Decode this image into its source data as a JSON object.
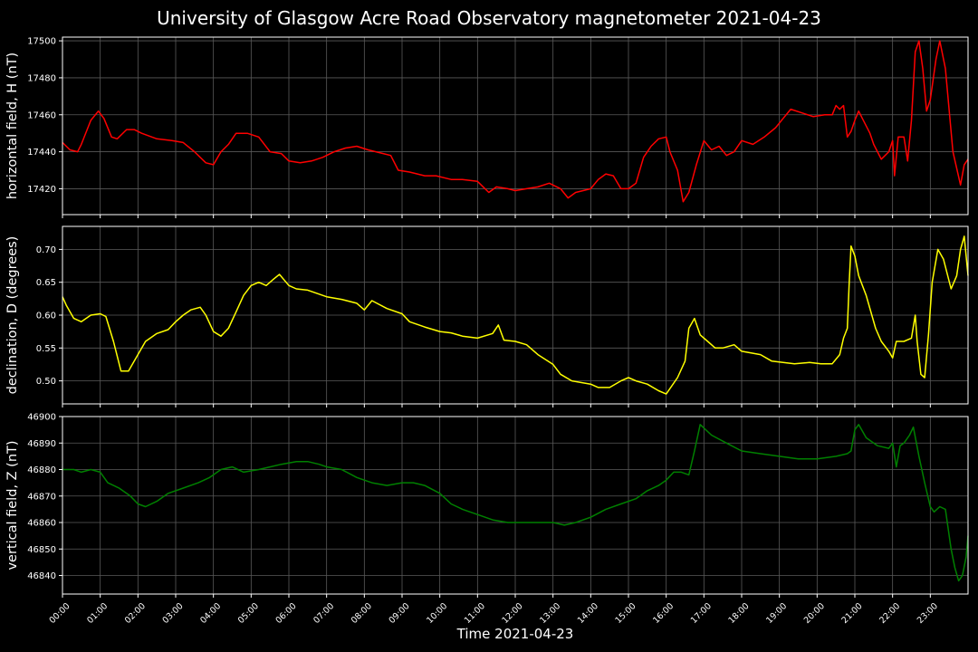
{
  "figure": {
    "title": "University of Glasgow Acre Road Observatory magnetometer 2021-04-23",
    "xlabel": "Time 2021-04-23",
    "background": "#000000",
    "grid_color": "#5a5a5a"
  },
  "chart_data": [
    {
      "type": "line",
      "ylabel": "horizontal field, H (nT)",
      "color": "#ff0000",
      "ylim": [
        17406,
        17502
      ],
      "yticks": [
        17420,
        17440,
        17460,
        17480,
        17500
      ],
      "xlim": [
        0,
        24
      ],
      "grid": true,
      "series": [
        {
          "x": [
            0.0,
            0.2,
            0.4,
            0.5,
            0.75,
            0.95,
            1.1,
            1.3,
            1.45,
            1.7,
            1.9,
            2.1,
            2.5,
            2.9,
            3.2,
            3.5,
            3.8,
            4.0,
            4.2,
            4.4,
            4.6,
            4.9,
            5.2,
            5.5,
            5.8,
            6.0,
            6.3,
            6.6,
            6.9,
            7.2,
            7.5,
            7.8,
            8.1,
            8.5,
            8.7,
            8.9,
            9.2,
            9.6,
            9.9,
            10.3,
            10.6,
            11.0,
            11.3,
            11.5,
            11.8,
            12.0,
            12.3,
            12.6,
            12.9,
            13.2,
            13.4,
            13.6,
            13.8,
            14.0,
            14.2,
            14.4,
            14.6,
            14.8,
            15.0,
            15.2,
            15.4,
            15.6,
            15.8,
            16.0,
            16.1,
            16.3,
            16.45,
            16.6,
            16.8,
            17.0,
            17.2,
            17.4,
            17.6,
            17.8,
            18.0,
            18.3,
            18.6,
            18.9,
            19.1,
            19.3,
            19.6,
            19.9,
            20.2,
            20.4,
            20.5,
            20.6,
            20.7,
            20.8,
            20.9,
            21.0,
            21.1,
            21.2,
            21.4,
            21.5,
            21.7,
            21.9,
            22.0,
            22.05,
            22.15,
            22.3,
            22.4,
            22.5,
            22.6,
            22.7,
            22.8,
            22.9,
            23.0,
            23.15,
            23.25,
            23.4,
            23.6,
            23.8,
            23.9,
            24.0
          ],
          "values": [
            17445,
            17441,
            17440,
            17444,
            17457,
            17462,
            17458,
            17448,
            17447,
            17452,
            17452,
            17450,
            17447,
            17446,
            17445,
            17440,
            17434,
            17433,
            17440,
            17444,
            17450,
            17450,
            17448,
            17440,
            17439,
            17435,
            17434,
            17435,
            17437,
            17440,
            17442,
            17443,
            17441,
            17439,
            17438,
            17430,
            17429,
            17427,
            17427,
            17425,
            17425,
            17424,
            17418,
            17421,
            17420,
            17419,
            17420,
            17421,
            17423,
            17420,
            17415,
            17418,
            17419,
            17420,
            17425,
            17428,
            17427,
            17420,
            17420,
            17423,
            17437,
            17443,
            17447,
            17448,
            17440,
            17430,
            17413,
            17418,
            17433,
            17446,
            17441,
            17443,
            17438,
            17440,
            17446,
            17444,
            17448,
            17453,
            17458,
            17463,
            17461,
            17459,
            17460,
            17460,
            17465,
            17463,
            17465,
            17448,
            17451,
            17457,
            17462,
            17458,
            17450,
            17444,
            17436,
            17440,
            17446,
            17427,
            17448,
            17448,
            17435,
            17457,
            17494,
            17500,
            17485,
            17462,
            17468,
            17490,
            17500,
            17485,
            17440,
            17422,
            17433,
            17436
          ]
        }
      ]
    },
    {
      "type": "line",
      "ylabel": "declination, D (degrees)",
      "color": "#ffff00",
      "ylim": [
        0.465,
        0.735
      ],
      "yticks": [
        0.5,
        0.55,
        0.6,
        0.65,
        0.7
      ],
      "yticklabels": [
        "0.50",
        "0.55",
        "0.60",
        "0.65",
        "0.70"
      ],
      "xlim": [
        0,
        24
      ],
      "grid": true,
      "series": [
        {
          "x": [
            0.0,
            0.1,
            0.3,
            0.5,
            0.75,
            1.0,
            1.15,
            1.35,
            1.55,
            1.75,
            2.0,
            2.2,
            2.5,
            2.8,
            3.0,
            3.2,
            3.4,
            3.65,
            3.8,
            4.0,
            4.2,
            4.4,
            4.6,
            4.8,
            5.0,
            5.2,
            5.4,
            5.6,
            5.75,
            6.0,
            6.2,
            6.5,
            7.0,
            7.4,
            7.8,
            8.0,
            8.2,
            8.6,
            9.0,
            9.2,
            9.6,
            10.0,
            10.3,
            10.6,
            11.0,
            11.4,
            11.55,
            11.7,
            12.0,
            12.3,
            12.6,
            13.0,
            13.2,
            13.5,
            14.0,
            14.2,
            14.5,
            14.8,
            15.0,
            15.2,
            15.5,
            15.8,
            16.0,
            16.3,
            16.5,
            16.6,
            16.75,
            16.9,
            17.1,
            17.3,
            17.5,
            17.8,
            18.0,
            18.5,
            18.8,
            19.1,
            19.4,
            19.8,
            20.1,
            20.4,
            20.6,
            20.7,
            20.8,
            20.85,
            20.9,
            21.0,
            21.1,
            21.3,
            21.55,
            21.7,
            21.9,
            22.0,
            22.1,
            22.3,
            22.5,
            22.6,
            22.65,
            22.75,
            22.85,
            22.95,
            23.05,
            23.2,
            23.35,
            23.55,
            23.7,
            23.8,
            23.9,
            24.0
          ],
          "values": [
            0.628,
            0.615,
            0.595,
            0.59,
            0.6,
            0.602,
            0.598,
            0.56,
            0.515,
            0.515,
            0.54,
            0.56,
            0.572,
            0.578,
            0.59,
            0.6,
            0.608,
            0.612,
            0.6,
            0.575,
            0.568,
            0.58,
            0.605,
            0.63,
            0.645,
            0.65,
            0.645,
            0.655,
            0.662,
            0.645,
            0.64,
            0.638,
            0.628,
            0.624,
            0.618,
            0.608,
            0.622,
            0.61,
            0.602,
            0.59,
            0.582,
            0.575,
            0.573,
            0.568,
            0.565,
            0.572,
            0.585,
            0.562,
            0.56,
            0.555,
            0.54,
            0.525,
            0.51,
            0.5,
            0.495,
            0.49,
            0.49,
            0.5,
            0.505,
            0.5,
            0.495,
            0.485,
            0.48,
            0.505,
            0.53,
            0.58,
            0.595,
            0.57,
            0.56,
            0.55,
            0.55,
            0.555,
            0.545,
            0.54,
            0.53,
            0.528,
            0.526,
            0.528,
            0.526,
            0.526,
            0.54,
            0.565,
            0.58,
            0.65,
            0.705,
            0.69,
            0.66,
            0.63,
            0.58,
            0.56,
            0.545,
            0.535,
            0.56,
            0.56,
            0.565,
            0.6,
            0.56,
            0.51,
            0.505,
            0.57,
            0.65,
            0.7,
            0.685,
            0.64,
            0.66,
            0.7,
            0.72,
            0.66
          ]
        }
      ]
    },
    {
      "type": "line",
      "ylabel": "vertical field, Z (nT)",
      "color": "#008000",
      "ylim": [
        46833,
        46900
      ],
      "yticks": [
        46840,
        46850,
        46860,
        46870,
        46880,
        46890,
        46900
      ],
      "xlim": [
        0,
        24
      ],
      "grid": true,
      "series": [
        {
          "x": [
            0.0,
            0.3,
            0.5,
            0.75,
            1.0,
            1.2,
            1.5,
            1.8,
            2.0,
            2.2,
            2.5,
            2.8,
            3.2,
            3.6,
            3.9,
            4.2,
            4.5,
            4.8,
            5.2,
            5.5,
            5.8,
            6.2,
            6.5,
            6.8,
            7.0,
            7.4,
            7.8,
            8.2,
            8.6,
            9.0,
            9.3,
            9.6,
            10.0,
            10.3,
            10.6,
            11.0,
            11.4,
            11.8,
            12.2,
            12.6,
            13.0,
            13.3,
            13.6,
            14.0,
            14.4,
            14.8,
            15.2,
            15.5,
            15.8,
            16.0,
            16.2,
            16.4,
            16.6,
            16.75,
            16.9,
            17.2,
            17.6,
            18.0,
            18.5,
            19.0,
            19.5,
            20.0,
            20.5,
            20.8,
            20.9,
            21.0,
            21.1,
            21.3,
            21.6,
            21.9,
            22.0,
            22.1,
            22.2,
            22.3,
            22.45,
            22.55,
            22.7,
            22.85,
            23.0,
            23.1,
            23.25,
            23.4,
            23.55,
            23.65,
            23.75,
            23.85,
            23.95,
            24.0
          ],
          "values": [
            46880,
            46880,
            46879,
            46880,
            46879,
            46875,
            46873,
            46870,
            46867,
            46866,
            46868,
            46871,
            46873,
            46875,
            46877,
            46880,
            46881,
            46879,
            46880,
            46881,
            46882,
            46883,
            46883,
            46882,
            46881,
            46880,
            46877,
            46875,
            46874,
            46875,
            46875,
            46874,
            46871,
            46867,
            46865,
            46863,
            46861,
            46860,
            46860,
            46860,
            46860,
            46859,
            46860,
            46862,
            46865,
            46867,
            46869,
            46872,
            46874,
            46876,
            46879,
            46879,
            46878,
            46887,
            46897,
            46893,
            46890,
            46887,
            46886,
            46885,
            46884,
            46884,
            46885,
            46886,
            46887,
            46895,
            46897,
            46892,
            46889,
            46888,
            46890,
            46881,
            46889,
            46890,
            46893,
            46896,
            46885,
            46875,
            46866,
            46864,
            46866,
            46865,
            46850,
            46843,
            46838,
            46840,
            46847,
            46855
          ]
        }
      ]
    }
  ],
  "x_axis": {
    "tick_labels": [
      "00:00",
      "01:00",
      "02:00",
      "03:00",
      "04:00",
      "05:00",
      "06:00",
      "07:00",
      "08:00",
      "09:00",
      "10:00",
      "11:00",
      "12:00",
      "13:00",
      "14:00",
      "15:00",
      "16:00",
      "17:00",
      "18:00",
      "19:00",
      "20:00",
      "21:00",
      "22:00",
      "23:00"
    ]
  }
}
